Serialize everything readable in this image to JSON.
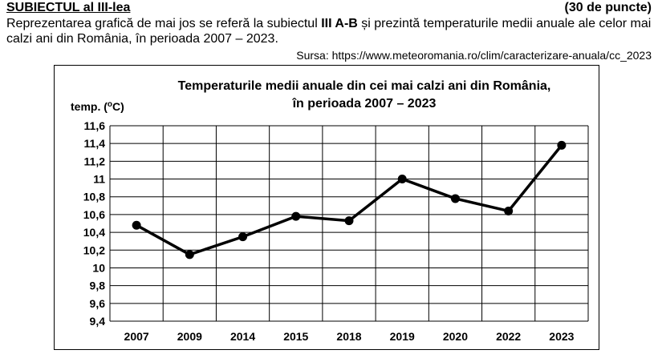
{
  "header": {
    "subject": "SUBIECTUL al III-lea",
    "points": "(30 de puncte)"
  },
  "intro": {
    "part1": "Reprezentarea grafică de mai jos se referă la subiectul ",
    "part_bold": "III A-B",
    "part2": " și prezintă temperaturile medii anuale ale celor mai calzi ani din România, în perioada 2007 – 2023."
  },
  "source": "Sursa: https://www.meteoromania.ro/clim/caracterizare-anuala/cc_2023",
  "chart_data": {
    "type": "line",
    "title_line1": "Temperaturile medii anuale din cei mai calzi ani din România,",
    "title_line2": "în perioada  2007 – 2023",
    "ylabel_prefix": "temp. (",
    "ylabel_sup": "o",
    "ylabel_suffix": "C)",
    "xlabel": "",
    "categories": [
      "2007",
      "2009",
      "2014",
      "2015",
      "2018",
      "2019",
      "2020",
      "2022",
      "2023"
    ],
    "values": [
      10.48,
      10.15,
      10.35,
      10.58,
      10.53,
      11.0,
      10.78,
      10.64,
      11.38
    ],
    "ylim": [
      9.4,
      11.6
    ],
    "yticks": [
      "9,4",
      "9,6",
      "9,8",
      "10",
      "10,2",
      "10,4",
      "10,6",
      "10,8",
      "11",
      "11,2",
      "11,4",
      "11,6"
    ],
    "grid": true,
    "line_color": "#000000",
    "marker_color": "#000000"
  }
}
